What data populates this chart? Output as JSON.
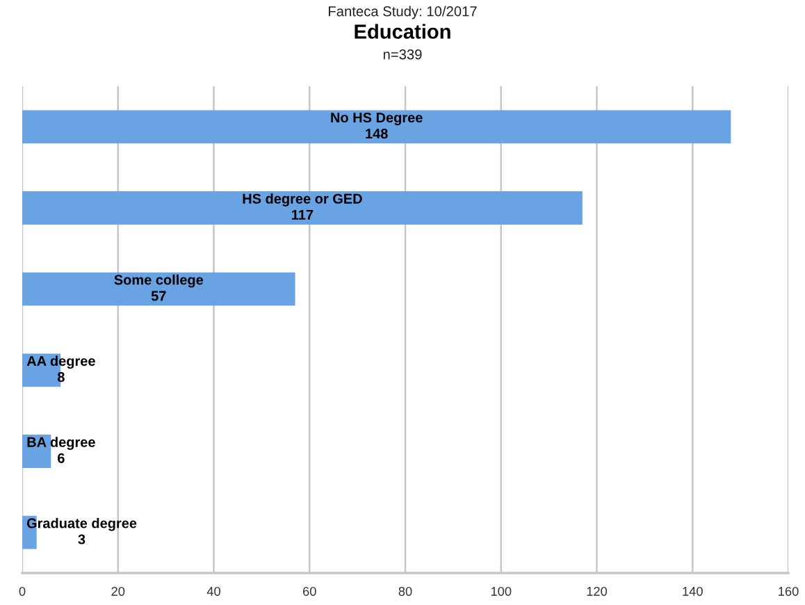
{
  "chart_data": {
    "type": "bar",
    "orientation": "horizontal",
    "title": "Education",
    "subtitle": "n=339",
    "annotations": [
      "Fanteca Study: 10/2017"
    ],
    "categories": [
      "No HS Degree",
      "HS degree or GED",
      "Some college",
      "AA degree",
      "BA degree",
      "Graduate degree"
    ],
    "values": [
      148,
      117,
      57,
      8,
      6,
      3
    ],
    "color": "#6aa3e3",
    "xlim": [
      0,
      160
    ],
    "xticks": [
      0,
      20,
      40,
      60,
      80,
      100,
      120,
      140,
      160
    ],
    "grid": "x",
    "tick_labels": "x",
    "data_labels": true
  }
}
